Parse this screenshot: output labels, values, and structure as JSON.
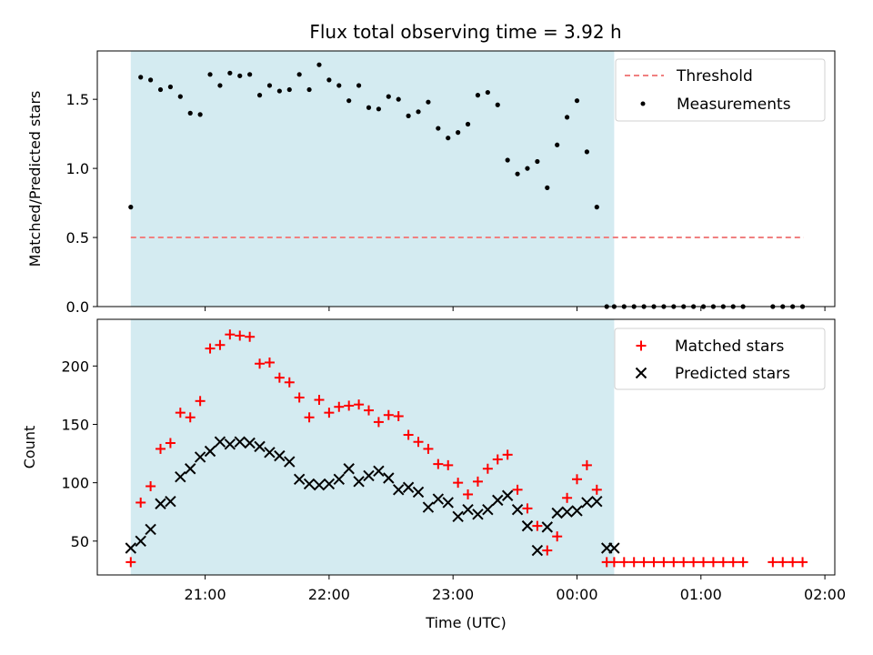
{
  "chart_data": {
    "type": "scatter",
    "title": "Flux total observing time = 3.92 h",
    "xlabel": "Time (UTC)",
    "x_tick_labels": [
      "21:00",
      "22:00",
      "23:00",
      "00:00",
      "01:00",
      "02:00"
    ],
    "x_tick_hours": [
      21,
      22,
      23,
      24,
      25,
      26
    ],
    "xlim_hours": [
      20.13,
      26.08
    ],
    "observing_window_hours": [
      20.4,
      24.3
    ],
    "window_color": "#d4ebf1",
    "top": {
      "ylabel": "Matched/Predicted stars",
      "ylim": [
        0,
        1.85
      ],
      "yticks": [
        0,
        0.5,
        1,
        1.5
      ],
      "y_tick_labels": [
        "0.0",
        "0.5",
        "1.0",
        "1.5"
      ],
      "threshold": {
        "name": "Threshold",
        "value": 0.5,
        "x_range": [
          20.4,
          25.83
        ],
        "color": "#f08080"
      },
      "measurements": {
        "name": "Measurements",
        "color": "#000000",
        "x": [
          20.4,
          20.48,
          20.56,
          20.64,
          20.72,
          20.8,
          20.88,
          20.96,
          21.04,
          21.12,
          21.2,
          21.28,
          21.36,
          21.44,
          21.52,
          21.6,
          21.68,
          21.76,
          21.84,
          21.92,
          22.0,
          22.08,
          22.16,
          22.24,
          22.32,
          22.4,
          22.48,
          22.56,
          22.64,
          22.72,
          22.8,
          22.88,
          22.96,
          23.04,
          23.12,
          23.2,
          23.28,
          23.36,
          23.44,
          23.52,
          23.6,
          23.68,
          23.76,
          23.84,
          23.92,
          24.0,
          24.08,
          24.16,
          24.24,
          24.3,
          24.38,
          24.46,
          24.54,
          24.62,
          24.7,
          24.78,
          24.86,
          24.94,
          25.02,
          25.1,
          25.18,
          25.26,
          25.34,
          25.58,
          25.66,
          25.74,
          25.82
        ],
        "y": [
          0.72,
          1.66,
          1.64,
          1.57,
          1.59,
          1.52,
          1.4,
          1.39,
          1.68,
          1.6,
          1.69,
          1.67,
          1.68,
          1.53,
          1.6,
          1.56,
          1.57,
          1.68,
          1.57,
          1.75,
          1.64,
          1.6,
          1.49,
          1.6,
          1.44,
          1.43,
          1.52,
          1.5,
          1.38,
          1.41,
          1.48,
          1.29,
          1.22,
          1.26,
          1.32,
          1.53,
          1.55,
          1.46,
          1.06,
          0.96,
          1.0,
          1.05,
          0.86,
          1.17,
          1.37,
          1.49,
          1.12,
          0.72,
          0,
          0,
          0,
          0,
          0,
          0,
          0,
          0,
          0,
          0,
          0,
          0,
          0,
          0,
          0,
          0,
          0,
          0,
          0
        ]
      }
    },
    "bottom": {
      "ylabel": "Count",
      "ylim": [
        21,
        240
      ],
      "yticks": [
        50,
        100,
        150,
        200
      ],
      "y_tick_labels": [
        "50",
        "100",
        "150",
        "200"
      ],
      "series": [
        {
          "name": "Matched stars",
          "marker": "plus",
          "color": "#ff0000",
          "x": [
            20.4,
            20.48,
            20.56,
            20.64,
            20.72,
            20.8,
            20.88,
            20.96,
            21.04,
            21.12,
            21.2,
            21.28,
            21.36,
            21.44,
            21.52,
            21.6,
            21.68,
            21.76,
            21.84,
            21.92,
            22.0,
            22.08,
            22.16,
            22.24,
            22.32,
            22.4,
            22.48,
            22.56,
            22.64,
            22.72,
            22.8,
            22.88,
            22.96,
            23.04,
            23.12,
            23.2,
            23.28,
            23.36,
            23.44,
            23.52,
            23.6,
            23.68,
            23.76,
            23.84,
            23.92,
            24.0,
            24.08,
            24.16,
            24.24,
            24.3,
            24.38,
            24.46,
            24.54,
            24.62,
            24.7,
            24.78,
            24.86,
            24.94,
            25.02,
            25.1,
            25.18,
            25.26,
            25.34,
            25.58,
            25.66,
            25.74,
            25.82
          ],
          "y": [
            32,
            83,
            97,
            129,
            134,
            160,
            156,
            170,
            215,
            218,
            227,
            226,
            225,
            202,
            203,
            190,
            186,
            173,
            156,
            171,
            160,
            165,
            166,
            167,
            162,
            152,
            158,
            157,
            141,
            135,
            129,
            116,
            115,
            100,
            90,
            101,
            112,
            120,
            124,
            94,
            78,
            63,
            42,
            54,
            87,
            103,
            115,
            94,
            32,
            32,
            32,
            32,
            32,
            32,
            32,
            32,
            32,
            32,
            32,
            32,
            32,
            32,
            32,
            32,
            32,
            32,
            32
          ]
        },
        {
          "name": "Predicted stars",
          "marker": "x",
          "color": "#000000",
          "x": [
            20.4,
            20.48,
            20.56,
            20.64,
            20.72,
            20.8,
            20.88,
            20.96,
            21.04,
            21.12,
            21.2,
            21.28,
            21.36,
            21.44,
            21.52,
            21.6,
            21.68,
            21.76,
            21.84,
            21.92,
            22.0,
            22.08,
            22.16,
            22.24,
            22.32,
            22.4,
            22.48,
            22.56,
            22.64,
            22.72,
            22.8,
            22.88,
            22.96,
            23.04,
            23.12,
            23.2,
            23.28,
            23.36,
            23.44,
            23.52,
            23.6,
            23.68,
            23.76,
            23.84,
            23.92,
            24.0,
            24.08,
            24.16,
            24.24,
            24.3
          ],
          "y": [
            44,
            50,
            60,
            82,
            84,
            105,
            112,
            122,
            127,
            135,
            133,
            135,
            134,
            131,
            126,
            123,
            118,
            103,
            99,
            98,
            99,
            103,
            112,
            101,
            106,
            110,
            104,
            94,
            96,
            92,
            79,
            86,
            83,
            71,
            77,
            73,
            77,
            85,
            89,
            77,
            63,
            42,
            62,
            74,
            75,
            76,
            83,
            84,
            44,
            44
          ]
        }
      ]
    }
  }
}
